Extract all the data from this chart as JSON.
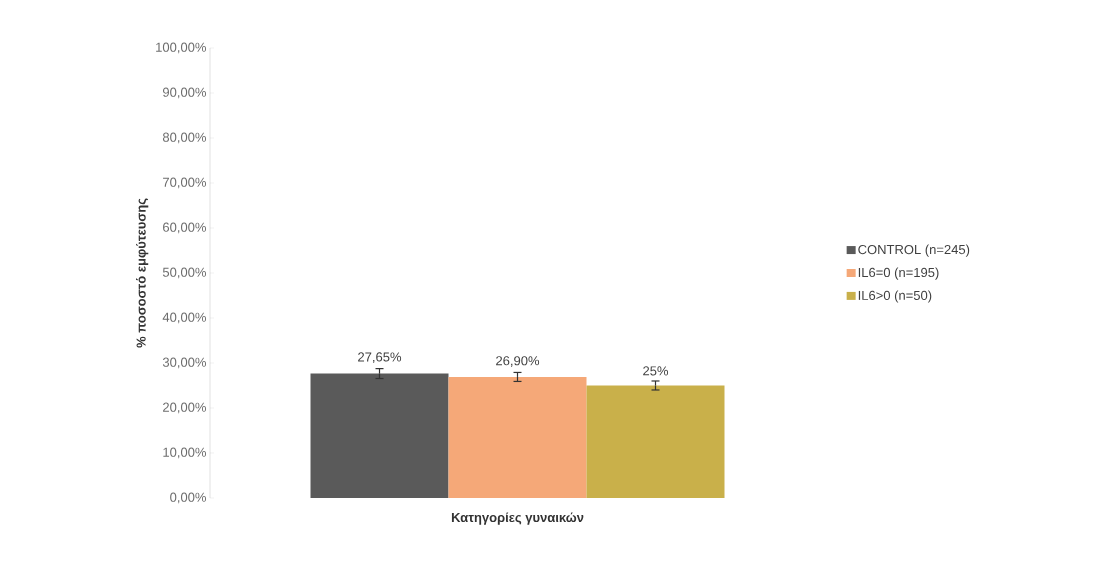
{
  "chart_data": {
    "type": "bar",
    "xlabel": "Κατηγορίες γυναικών",
    "ylabel": "% ποσοστό εμφύτευσης",
    "categories": [
      null
    ],
    "series": [
      {
        "name": "CONTROL (n=245)",
        "color": "#5a5a5a",
        "values": [
          27.65
        ],
        "errors": [
          1.1
        ],
        "value_labels": [
          "27,65%"
        ]
      },
      {
        "name": "IL6=0 (n=195)",
        "color": "#f5a878",
        "values": [
          26.9
        ],
        "errors": [
          1.0
        ],
        "value_labels": [
          "26,90%"
        ]
      },
      {
        "name": "IL6>0 (n=50)",
        "color": "#c9b04a",
        "values": [
          25
        ],
        "errors": [
          1.0
        ],
        "value_labels": [
          "25%"
        ]
      }
    ],
    "ylim": [
      0,
      100
    ],
    "yticks": [
      {
        "value": 0,
        "label": "0,00%"
      },
      {
        "value": 10,
        "label": "10,00%"
      },
      {
        "value": 20,
        "label": "20,00%"
      },
      {
        "value": 30,
        "label": "30,00%"
      },
      {
        "value": 40,
        "label": "40,00%"
      },
      {
        "value": 50,
        "label": "50,00%"
      },
      {
        "value": 60,
        "label": "60,00%"
      },
      {
        "value": 70,
        "label": "70,00%"
      },
      {
        "value": 80,
        "label": "80,00%"
      },
      {
        "value": 90,
        "label": "90,00%"
      },
      {
        "value": 100,
        "label": "100,00%"
      }
    ],
    "tick_labels": "y",
    "legend": "right",
    "grid": false
  }
}
